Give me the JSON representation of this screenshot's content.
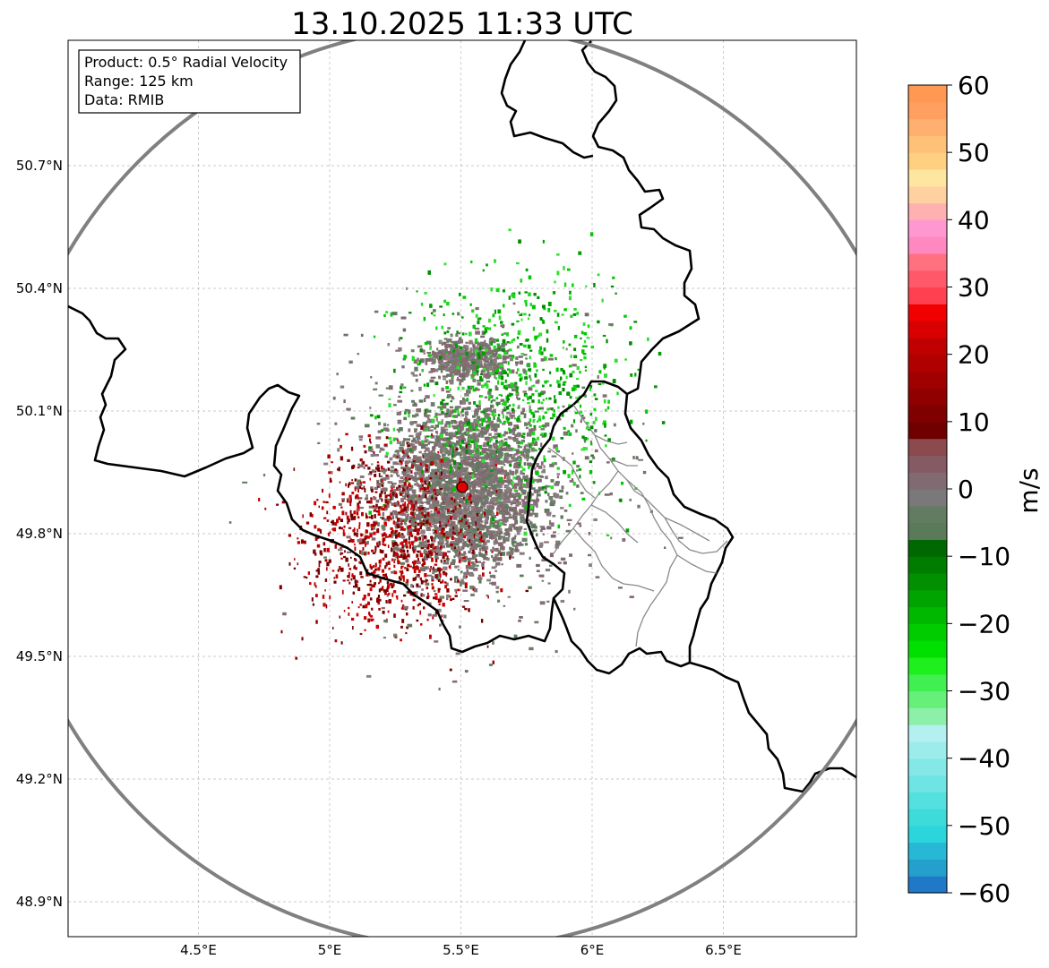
{
  "title": "13.10.2025 11:33 UTC",
  "info_box": {
    "lines": [
      "Product: 0.5° Radial Velocity",
      "Range: 125 km",
      "Data: RMIB"
    ]
  },
  "axes": {
    "lon_ticks": [
      {
        "value": 4.5,
        "label": "4.5°E"
      },
      {
        "value": 5.0,
        "label": "5°E"
      },
      {
        "value": 5.5,
        "label": "5.5°E"
      },
      {
        "value": 6.0,
        "label": "6°E"
      },
      {
        "value": 6.5,
        "label": "6.5°E"
      }
    ],
    "lat_ticks": [
      {
        "value": 50.7,
        "label": "50.7°N"
      },
      {
        "value": 50.4,
        "label": "50.4°N"
      },
      {
        "value": 50.1,
        "label": "50.1°N"
      },
      {
        "value": 49.8,
        "label": "49.8°N"
      },
      {
        "value": 49.5,
        "label": "49.5°N"
      },
      {
        "value": 49.2,
        "label": "49.2°N"
      },
      {
        "value": 48.9,
        "label": "48.9°N"
      }
    ],
    "lon_range": [
      4.0,
      7.0
    ],
    "lat_range": [
      48.8,
      51.0
    ]
  },
  "radar": {
    "site_lon": 5.505,
    "site_lat": 49.914,
    "range_km": 125
  },
  "colorbar": {
    "label": "m/s",
    "min": -60,
    "max": 60,
    "ticks": [
      {
        "value": 60,
        "label": "60"
      },
      {
        "value": 50,
        "label": "50"
      },
      {
        "value": 40,
        "label": "40"
      },
      {
        "value": 30,
        "label": "30"
      },
      {
        "value": 20,
        "label": "20"
      },
      {
        "value": 10,
        "label": "10"
      },
      {
        "value": 0,
        "label": "0"
      },
      {
        "value": -10,
        "label": "−10"
      },
      {
        "value": -20,
        "label": "−20"
      },
      {
        "value": -30,
        "label": "−30"
      },
      {
        "value": -40,
        "label": "−40"
      },
      {
        "value": -50,
        "label": "−50"
      },
      {
        "value": -60,
        "label": "−60"
      }
    ],
    "colors": [
      "#1f78c8",
      "#23a0cc",
      "#26b8d4",
      "#2cd4dc",
      "#3edbdb",
      "#55e0e0",
      "#6ee4e4",
      "#85e8e8",
      "#9cecec",
      "#b4f0f0",
      "#8cf0a8",
      "#66f07a",
      "#40f050",
      "#1ef01e",
      "#00e000",
      "#00cc00",
      "#00b800",
      "#00a400",
      "#009000",
      "#007c00",
      "#006800",
      "#5a7a5a",
      "#627c62",
      "#7a7878",
      "#826a72",
      "#865a62",
      "#8a4a4e",
      "#700000",
      "#800000",
      "#900000",
      "#a00000",
      "#b00000",
      "#c00000",
      "#d80000",
      "#f00000",
      "#ff4050",
      "#ff5868",
      "#ff7080",
      "#ff88c0",
      "#ff98d0",
      "#ffb0b0",
      "#ffd0a0",
      "#ffe6a0",
      "#ffd080",
      "#ffc078",
      "#ffb070",
      "#ffa060",
      "#ff9850"
    ]
  }
}
